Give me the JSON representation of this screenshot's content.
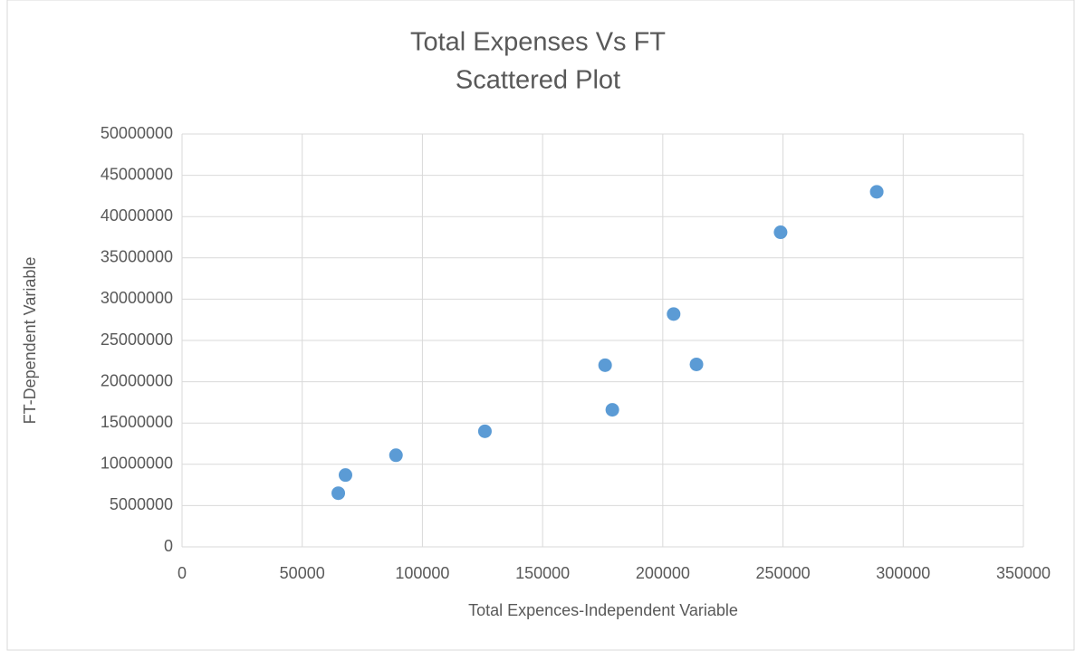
{
  "chart_data": {
    "type": "scatter",
    "title": [
      "Total Expenses Vs FT",
      "Scattered Plot"
    ],
    "x_label": "Total Expences-Independent Variable",
    "y_label": "FT-Dependent Variable",
    "series": [
      {
        "name": "FT",
        "color": "#5b9bd5",
        "x": [
          65000,
          68000,
          89000,
          126000,
          176000,
          179000,
          204500,
          214000,
          249000,
          289000
        ],
        "values": [
          6500000,
          8700000,
          11100000,
          14000000,
          22000000,
          16600000,
          28200000,
          22100000,
          38100000,
          43000000
        ]
      }
    ],
    "xlim": [
      0,
      350000
    ],
    "xticks": [
      0,
      50000,
      100000,
      150000,
      200000,
      250000,
      300000,
      350000
    ],
    "ylim": [
      0,
      50000000
    ],
    "yticks": [
      0,
      5000000,
      10000000,
      15000000,
      20000000,
      25000000,
      30000000,
      35000000,
      40000000,
      45000000,
      50000000
    ],
    "grid": true
  }
}
